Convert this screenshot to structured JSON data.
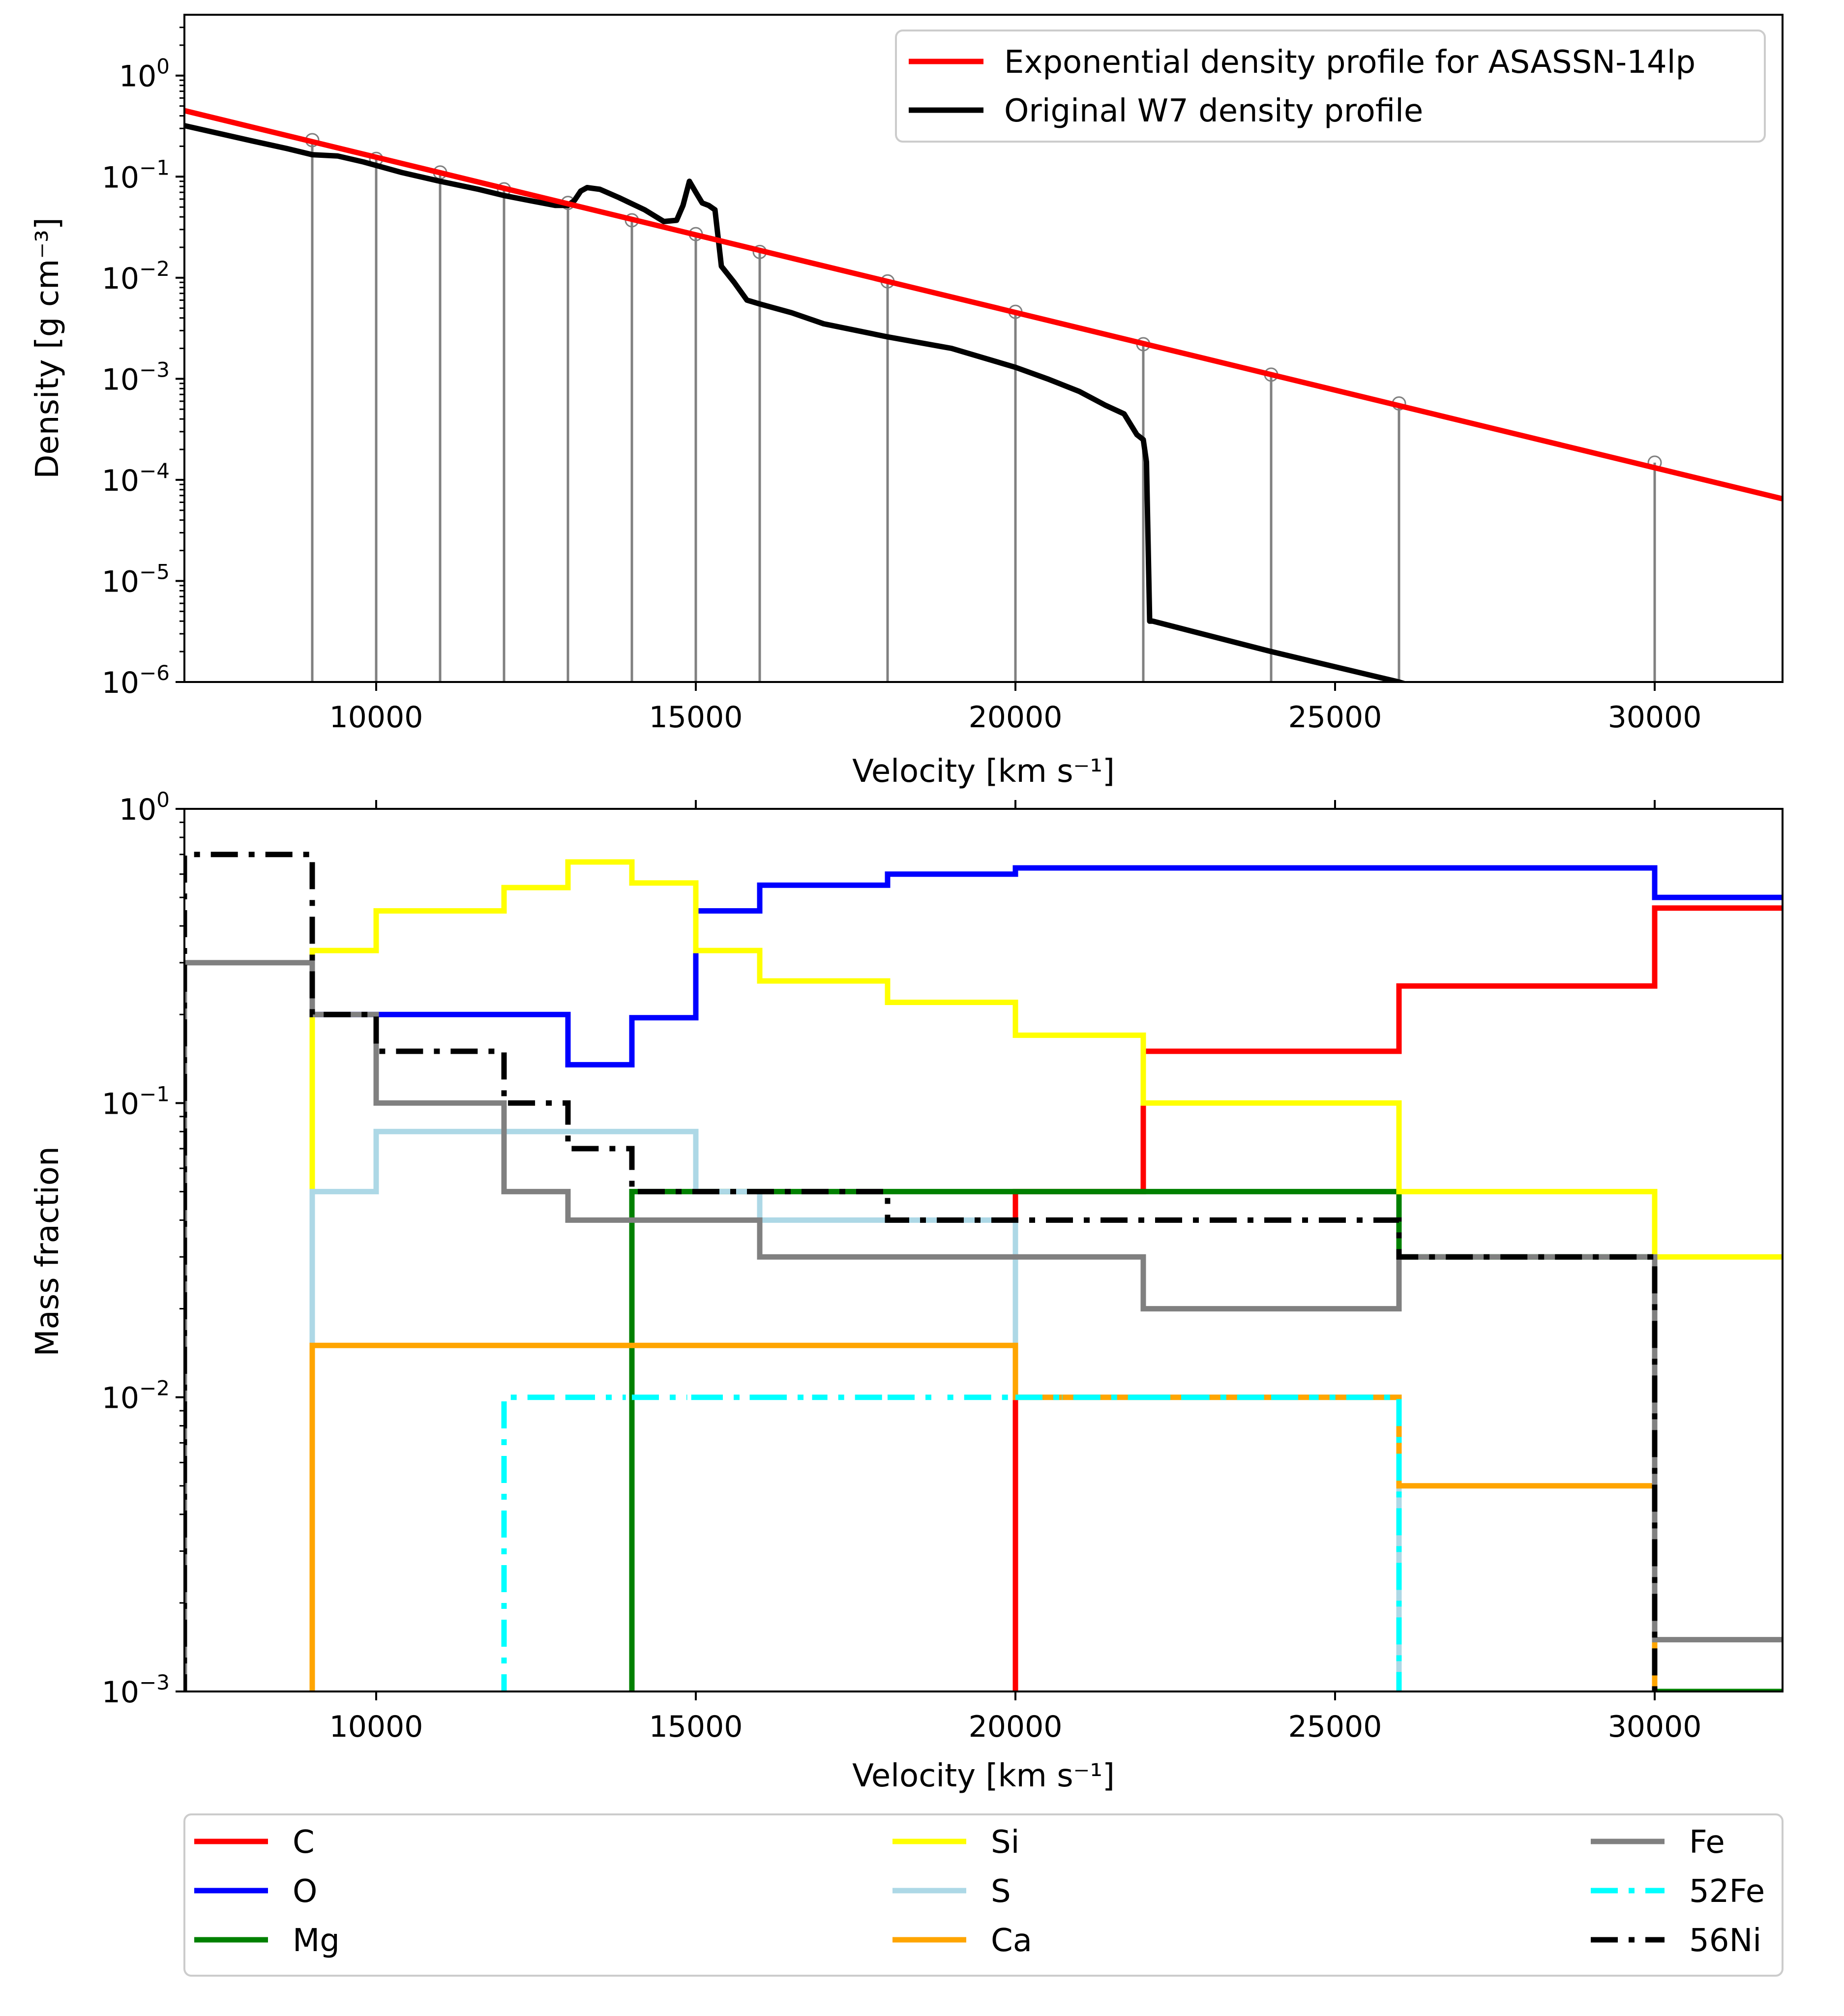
{
  "chart_data": [
    {
      "type": "line",
      "xlabel": "Velocity [km s⁻¹]",
      "ylabel": "Density [g cm⁻³]",
      "xlim": [
        7000,
        32000
      ],
      "ylim": [
        1e-06,
        4
      ],
      "yscale": "log",
      "grid": false,
      "legend_placement": "top-right",
      "x_ticks": [
        10000,
        15000,
        20000,
        25000,
        30000
      ],
      "x_tick_labels": [
        "10000",
        "15000",
        "20000",
        "25000",
        "30000"
      ],
      "y_ticks": [
        1e-06,
        1e-05,
        0.0001,
        0.001,
        0.01,
        0.1,
        1
      ],
      "y_tick_labels": [
        {
          "base": "10",
          "exp": "−6"
        },
        {
          "base": "10",
          "exp": "−5"
        },
        {
          "base": "10",
          "exp": "−4"
        },
        {
          "base": "10",
          "exp": "−3"
        },
        {
          "base": "10",
          "exp": "−2"
        },
        {
          "base": "10",
          "exp": "−1"
        },
        {
          "base": "10",
          "exp": "0"
        }
      ],
      "series": [
        {
          "name": "Exponential density profile for ASASSN-14lp",
          "color": "#ff0000",
          "x": [
            7000,
            32000
          ],
          "y": [
            0.45,
            6.5e-05
          ]
        },
        {
          "name": "Original W7 density profile",
          "color": "#000000",
          "x": [
            7000,
            8000,
            8600,
            9000,
            9400,
            9800,
            10400,
            11000,
            11600,
            12000,
            12400,
            12800,
            13000,
            13100,
            13200,
            13300,
            13500,
            13800,
            14200,
            14500,
            14700,
            14800,
            14900,
            15000,
            15100,
            15200,
            15300,
            15400,
            15600,
            15800,
            16000,
            16500,
            17000,
            18000,
            19000,
            20000,
            20500,
            21000,
            21400,
            21700,
            21900,
            22000,
            22050,
            22100,
            22150,
            24000,
            26000,
            26500
          ],
          "y": [
            0.32,
            0.23,
            0.19,
            0.165,
            0.16,
            0.14,
            0.11,
            0.09,
            0.075,
            0.065,
            0.058,
            0.052,
            0.052,
            0.058,
            0.072,
            0.078,
            0.075,
            0.062,
            0.047,
            0.036,
            0.037,
            0.052,
            0.09,
            0.07,
            0.055,
            0.052,
            0.047,
            0.013,
            0.009,
            0.006,
            0.0055,
            0.0045,
            0.0035,
            0.0026,
            0.002,
            0.0013,
            0.001,
            0.00075,
            0.00055,
            0.00045,
            0.00028,
            0.00025,
            0.00015,
            4e-06,
            4e-06,
            2e-06,
            1e-06,
            8e-07
          ]
        }
      ],
      "shells": {
        "x": [
          9000,
          10000,
          11000,
          12000,
          13000,
          14000,
          15000,
          16000,
          18000,
          20000,
          22000,
          24000,
          26000,
          30000
        ],
        "y": [
          0.23,
          0.15,
          0.11,
          0.075,
          0.055,
          0.037,
          0.027,
          0.018,
          0.0092,
          0.0046,
          0.0022,
          0.0011,
          0.00057,
          0.000148
        ],
        "color": "#808080"
      }
    },
    {
      "type": "line",
      "step": true,
      "xlabel": "Velocity [km s⁻¹]",
      "ylabel": "Mass fraction",
      "xlim": [
        7000,
        32000
      ],
      "ylim": [
        0.001,
        1
      ],
      "yscale": "log",
      "grid": false,
      "legend_placement": "below",
      "x_ticks": [
        10000,
        15000,
        20000,
        25000,
        30000
      ],
      "x_tick_labels": [
        "10000",
        "15000",
        "20000",
        "25000",
        "30000"
      ],
      "y_ticks": [
        0.001,
        0.01,
        0.1,
        1
      ],
      "y_tick_labels": [
        {
          "base": "10",
          "exp": "−3"
        },
        {
          "base": "10",
          "exp": "−2"
        },
        {
          "base": "10",
          "exp": "−1"
        },
        {
          "base": "10",
          "exp": "0"
        }
      ],
      "edges": [
        7000,
        9000,
        10000,
        11000,
        12000,
        13000,
        14000,
        15000,
        16000,
        18000,
        20000,
        22000,
        24000,
        26000,
        30000,
        32000
      ],
      "series": [
        {
          "name": "C",
          "color": "#ff0000",
          "dash": "solid",
          "values": [
            null,
            null,
            null,
            null,
            null,
            null,
            null,
            null,
            null,
            null,
            0.05,
            0.15,
            0.15,
            0.25,
            0.46
          ]
        },
        {
          "name": "O",
          "color": "#0000ff",
          "dash": "solid",
          "values": [
            null,
            0.2,
            0.2,
            0.2,
            0.2,
            0.135,
            0.195,
            0.45,
            0.55,
            0.6,
            0.63,
            0.63,
            0.63,
            0.63,
            0.5
          ]
        },
        {
          "name": "Mg",
          "color": "#008000",
          "dash": "solid",
          "values": [
            null,
            null,
            null,
            null,
            null,
            null,
            0.05,
            0.05,
            0.05,
            0.05,
            0.05,
            0.05,
            0.05,
            0.03,
            0.001
          ]
        },
        {
          "name": "Si",
          "color": "#ffff00",
          "dash": "solid",
          "values": [
            null,
            0.33,
            0.45,
            0.45,
            0.54,
            0.66,
            0.56,
            0.33,
            0.26,
            0.22,
            0.17,
            0.1,
            0.1,
            0.05,
            0.03
          ]
        },
        {
          "name": "S",
          "color": "#add8e6",
          "dash": "solid",
          "values": [
            null,
            0.05,
            0.08,
            0.08,
            0.08,
            0.08,
            0.08,
            0.05,
            0.04,
            0.04,
            0.01,
            0.01,
            0.01,
            null,
            null
          ]
        },
        {
          "name": "Ca",
          "color": "#ffa500",
          "dash": "solid",
          "values": [
            null,
            0.015,
            0.015,
            0.015,
            0.015,
            0.015,
            0.015,
            0.015,
            0.015,
            0.015,
            0.01,
            0.01,
            0.01,
            0.005,
            null
          ]
        },
        {
          "name": "Fe",
          "color": "#808080",
          "dash": "solid",
          "values": [
            0.3,
            0.2,
            0.1,
            0.1,
            0.05,
            0.04,
            0.04,
            0.04,
            0.03,
            0.03,
            0.03,
            0.02,
            0.02,
            0.03,
            0.0015
          ]
        },
        {
          "name": "52Fe",
          "color": "#00ffff",
          "dash": "dashdot",
          "values": [
            null,
            null,
            null,
            null,
            0.01,
            0.01,
            0.01,
            0.01,
            0.01,
            0.01,
            0.01,
            0.01,
            0.01,
            null,
            null
          ]
        },
        {
          "name": "56Ni",
          "color": "#000000",
          "dash": "dashdot",
          "values": [
            0.7,
            0.2,
            0.15,
            0.15,
            0.1,
            0.07,
            0.05,
            0.05,
            0.05,
            0.04,
            0.04,
            0.04,
            0.04,
            0.03,
            null
          ]
        }
      ]
    }
  ]
}
